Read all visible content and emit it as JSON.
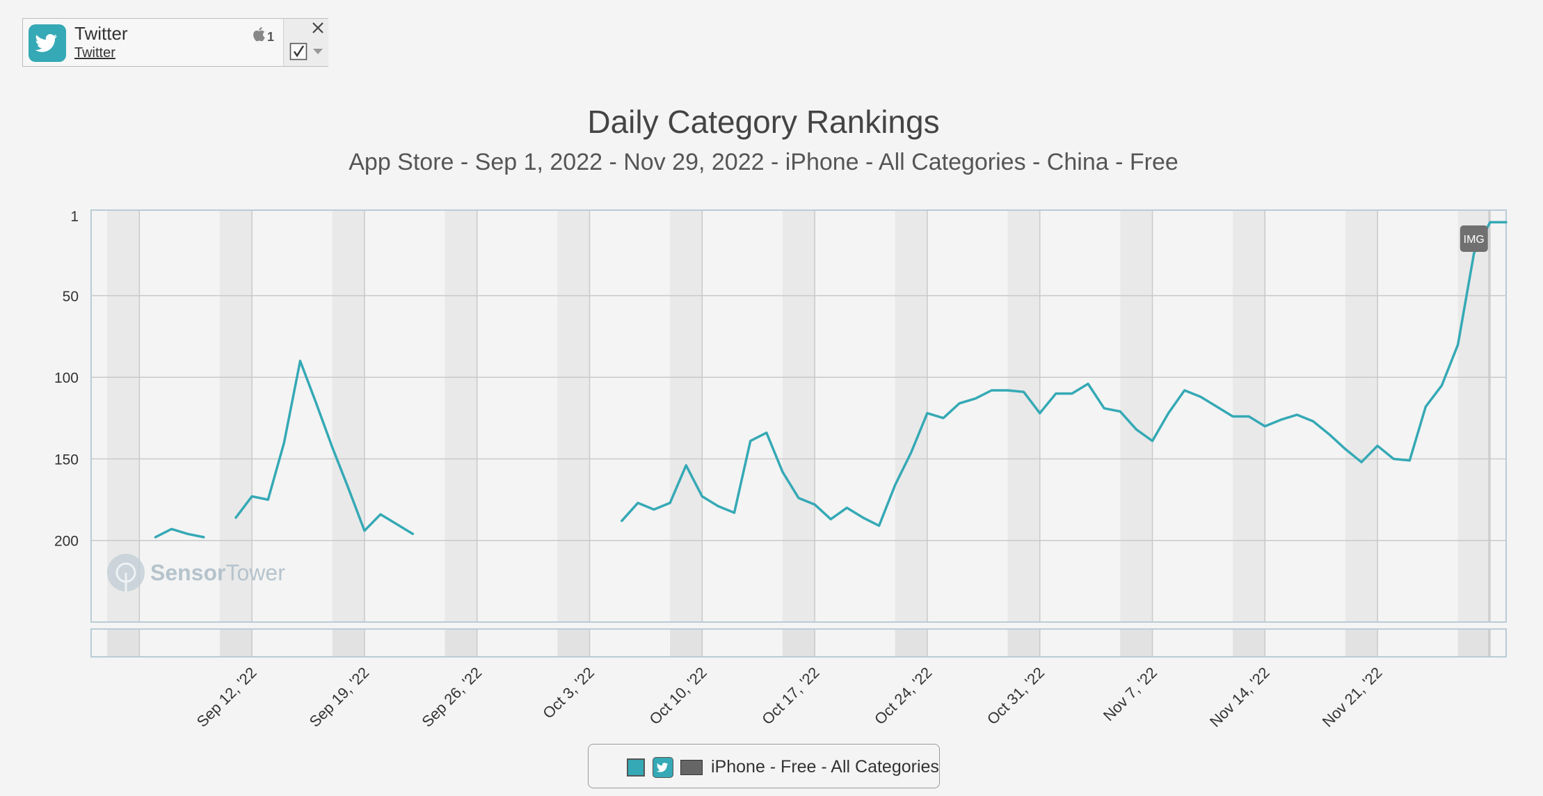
{
  "app_card": {
    "name": "Twitter",
    "publisher_link": "Twitter",
    "device_count": "1",
    "icons": [
      "twitter-bird-icon",
      "apple-icon",
      "close-icon",
      "checkbox-icon",
      "caret-down-icon"
    ],
    "brand_color": "#35a9b5"
  },
  "chart_data": {
    "type": "line",
    "title": "Daily Category Rankings",
    "subtitle": "App Store - Sep 1, 2022 - Nov 29, 2022 - iPhone - All Categories - China - Free",
    "y_axis": {
      "reversed": true,
      "range": [
        1,
        250
      ],
      "ticks": [
        1,
        50,
        100,
        150,
        200
      ]
    },
    "x_axis": {
      "range": [
        "2022-09-02",
        "2022-11-29"
      ],
      "tick_labels": [
        "Sep 12, '22",
        "Sep 19, '22",
        "Sep 26, '22",
        "Oct 3, '22",
        "Oct 10, '22",
        "Oct 17, '22",
        "Oct 24, '22",
        "Oct 31, '22",
        "Nov 7, '22",
        "Nov 14, '22",
        "Nov 21, '22"
      ],
      "tick_dates": [
        "2022-09-12",
        "2022-09-19",
        "2022-09-26",
        "2022-10-03",
        "2022-10-10",
        "2022-10-17",
        "2022-10-24",
        "2022-10-31",
        "2022-11-07",
        "2022-11-14",
        "2022-11-21"
      ]
    },
    "weekend_shading": true,
    "grid": true,
    "watermark": "SensorTower",
    "annotation": {
      "label": "IMG",
      "date": "2022-11-27"
    },
    "series": [
      {
        "name": "iPhone - Free - All Categories",
        "color": "#35a9b5",
        "points": [
          [
            "2022-09-06",
            198
          ],
          [
            "2022-09-07",
            193
          ],
          [
            "2022-09-08",
            196
          ],
          [
            "2022-09-09",
            198
          ],
          null,
          [
            "2022-09-11",
            186
          ],
          [
            "2022-09-12",
            173
          ],
          [
            "2022-09-13",
            175
          ],
          [
            "2022-09-14",
            140
          ],
          [
            "2022-09-15",
            90
          ],
          [
            "2022-09-16",
            116
          ],
          [
            "2022-09-17",
            143
          ],
          [
            "2022-09-18",
            168
          ],
          [
            "2022-09-19",
            194
          ],
          [
            "2022-09-20",
            184
          ],
          [
            "2022-09-21",
            190
          ],
          [
            "2022-09-22",
            196
          ],
          null,
          [
            "2022-10-05",
            188
          ],
          [
            "2022-10-06",
            177
          ],
          [
            "2022-10-07",
            181
          ],
          [
            "2022-10-08",
            177
          ],
          [
            "2022-10-09",
            154
          ],
          [
            "2022-10-10",
            173
          ],
          [
            "2022-10-11",
            179
          ],
          [
            "2022-10-12",
            183
          ],
          [
            "2022-10-13",
            139
          ],
          [
            "2022-10-14",
            134
          ],
          [
            "2022-10-15",
            158
          ],
          [
            "2022-10-16",
            174
          ],
          [
            "2022-10-17",
            178
          ],
          [
            "2022-10-18",
            187
          ],
          [
            "2022-10-19",
            180
          ],
          [
            "2022-10-20",
            186
          ],
          [
            "2022-10-21",
            191
          ],
          [
            "2022-10-22",
            166
          ],
          [
            "2022-10-23",
            146
          ],
          [
            "2022-10-24",
            122
          ],
          [
            "2022-10-25",
            125
          ],
          [
            "2022-10-26",
            116
          ],
          [
            "2022-10-27",
            113
          ],
          [
            "2022-10-28",
            108
          ],
          [
            "2022-10-29",
            108
          ],
          [
            "2022-10-30",
            109
          ],
          [
            "2022-10-31",
            122
          ],
          [
            "2022-11-01",
            110
          ],
          [
            "2022-11-02",
            110
          ],
          [
            "2022-11-03",
            104
          ],
          [
            "2022-11-04",
            119
          ],
          [
            "2022-11-05",
            121
          ],
          [
            "2022-11-06",
            132
          ],
          [
            "2022-11-07",
            139
          ],
          [
            "2022-11-08",
            122
          ],
          [
            "2022-11-09",
            108
          ],
          [
            "2022-11-10",
            112
          ],
          [
            "2022-11-11",
            118
          ],
          [
            "2022-11-12",
            124
          ],
          [
            "2022-11-13",
            124
          ],
          [
            "2022-11-14",
            130
          ],
          [
            "2022-11-15",
            126
          ],
          [
            "2022-11-16",
            123
          ],
          [
            "2022-11-17",
            127
          ],
          [
            "2022-11-18",
            135
          ],
          [
            "2022-11-19",
            144
          ],
          [
            "2022-11-20",
            152
          ],
          [
            "2022-11-21",
            142
          ],
          [
            "2022-11-22",
            150
          ],
          [
            "2022-11-23",
            151
          ],
          [
            "2022-11-24",
            118
          ],
          [
            "2022-11-25",
            105
          ],
          [
            "2022-11-26",
            80
          ],
          [
            "2022-11-27",
            24
          ],
          [
            "2022-11-28",
            5
          ],
          [
            "2022-11-29",
            5
          ]
        ]
      }
    ]
  },
  "legend": {
    "label": "iPhone - Free - All Categories",
    "icons": [
      "series-color-swatch",
      "twitter-app-icon",
      "iphone-device-icon"
    ]
  }
}
